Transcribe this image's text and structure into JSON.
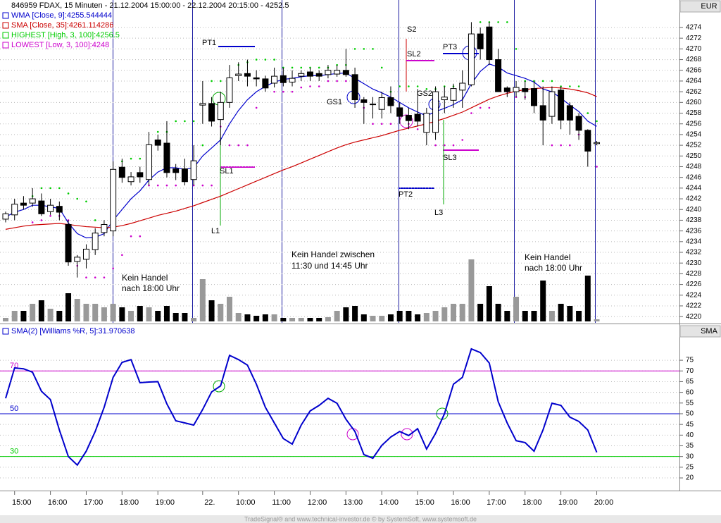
{
  "chart_data": [
    {
      "type": "candlestick",
      "title": "846959  FDAX, 15 Minuten - 21.12.2004 15:00:00 - 22.12.2004 20:15:00 - 4252.5",
      "axis_label": "EUR",
      "categories": [
        null,
        "15:00",
        null,
        null,
        null,
        "16:00",
        null,
        null,
        null,
        "17:00",
        null,
        null,
        null,
        "18:00",
        null,
        null,
        null,
        "19:00",
        null,
        null,
        null,
        null,
        "22.",
        null,
        null,
        null,
        "10:00",
        null,
        null,
        null,
        "11:00",
        null,
        null,
        null,
        "12:00",
        null,
        null,
        null,
        "13:00",
        null,
        null,
        null,
        "14:00",
        null,
        null,
        null,
        "15:00",
        null,
        null,
        null,
        "16:00",
        null,
        null,
        null,
        "17:00",
        null,
        null,
        null,
        "18:00",
        null,
        null,
        null,
        "19:00",
        null,
        null,
        null,
        "20:00"
      ],
      "open": [
        4238.2,
        4239,
        4241.2,
        4241.2,
        4241.6,
        4239.6,
        4240.6,
        4237.2,
        4230.3,
        4230.7,
        4232.5,
        4235.7,
        4236,
        4247.9,
        4245.2,
        4246.9,
        4245.6,
        4253,
        4252.4,
        4247.6,
        4247.6,
        4245.6,
        4259.5,
        4259.8,
        4256.8,
        4260,
        4265,
        4265.4,
        4264.6,
        4264.4,
        4263.6,
        4265,
        4263.8,
        4264.9,
        4265.7,
        4265.4,
        4265.2,
        4265.3,
        4266,
        4265.2,
        4260.5,
        4259.6,
        4258.7,
        4260.9,
        4259,
        4257.6,
        4257.8,
        4254.4,
        4254.4,
        4260.5,
        4260.4,
        4262.3,
        4263.3,
        4272.8,
        4274.1,
        4268,
        4262.7,
        4262,
        4262.6,
        4262.6,
        4259.4,
        4257.4,
        4262.3,
        4259.4,
        4257.4,
        4254.8,
        4252.3
      ],
      "high": [
        4239.6,
        4242,
        4242.5,
        4244,
        4243,
        4242,
        4241.5,
        4238,
        4231.5,
        4233.5,
        4236.5,
        4238,
        4249,
        4249.5,
        4247,
        4248,
        4254.5,
        4254,
        4256.5,
        4248.5,
        4249.5,
        4252,
        4264,
        4261,
        4262,
        4267,
        4267.5,
        4268,
        4266,
        4265,
        4266.5,
        4266.5,
        4266,
        4266,
        4266.5,
        4266,
        4267,
        4267,
        4270,
        4266.5,
        4261,
        4261,
        4262,
        4263,
        4260,
        4259,
        4262.5,
        4259,
        4263,
        4263,
        4263.5,
        4266,
        4275,
        4274,
        4275,
        4270,
        4263,
        4264,
        4264,
        4264,
        4263,
        4263,
        4263,
        4260,
        4258,
        4255,
        4252.8
      ],
      "low": [
        4237.6,
        4238,
        4240,
        4240.5,
        4238.8,
        4239,
        4238,
        4229.5,
        4227.3,
        4229,
        4231.5,
        4235,
        4235,
        4245,
        4244.5,
        4245,
        4244.5,
        4251,
        4246,
        4245.5,
        4244.5,
        4244.5,
        4256,
        4255.5,
        4252,
        4259,
        4264,
        4263,
        4263,
        4262,
        4262.8,
        4263,
        4263,
        4264,
        4264,
        4264,
        4264.5,
        4264.8,
        4264.8,
        4259,
        4256,
        4257,
        4257,
        4258,
        4256,
        4255,
        4255.5,
        4252,
        4253,
        4258,
        4259,
        4259,
        4263,
        4268,
        4267,
        4262,
        4261,
        4261,
        4260.5,
        4258,
        4252,
        4256,
        4255,
        4254,
        4253,
        4248,
        4252
      ],
      "close": [
        4239.2,
        4241,
        4240.8,
        4242,
        4239.2,
        4240.8,
        4239.5,
        4230.2,
        4231.1,
        4232.6,
        4235.6,
        4237.2,
        4247.5,
        4246,
        4246.1,
        4246.1,
        4252.1,
        4252,
        4246.9,
        4246.9,
        4245.2,
        4249.1,
        4259.8,
        4256.5,
        4260,
        4264.6,
        4265.3,
        4264.9,
        4264.4,
        4262.7,
        4264.9,
        4263.7,
        4264.5,
        4265.4,
        4264.9,
        4264.9,
        4266,
        4266,
        4265.2,
        4260.5,
        4260,
        4259.7,
        4260.9,
        4259.4,
        4257.4,
        4256.6,
        4256.5,
        4258,
        4262,
        4261,
        4262.6,
        4263.6,
        4272.8,
        4270,
        4268,
        4262,
        4262,
        4262.8,
        4262,
        4259.4,
        4256.7,
        4262,
        4256.7,
        4256.7,
        4254.8,
        4250.9,
        4252.5
      ],
      "up_color": "#ffffff",
      "down_color": "#000000",
      "volume": [
        5,
        15,
        15,
        25,
        30,
        18,
        15,
        40,
        32,
        25,
        25,
        20,
        25,
        20,
        15,
        22,
        20,
        15,
        22,
        12,
        12,
        5,
        60,
        30,
        25,
        35,
        12,
        10,
        8,
        10,
        10,
        5,
        5,
        5,
        5,
        5,
        6,
        15,
        20,
        22,
        10,
        8,
        8,
        10,
        15,
        15,
        10,
        12,
        15,
        20,
        25,
        25,
        88,
        25,
        50,
        25,
        15,
        35,
        15,
        15,
        58,
        15,
        25,
        22,
        15,
        65,
        3
      ],
      "volume_lim": [
        0,
        100
      ],
      "volume_up_color": "#999999",
      "volume_down_color": "#000000",
      "series": [
        {
          "name": "WMA [Close, 9]:4255.544444",
          "color": "#0000cc",
          "style": "line",
          "values": [
            4238.6,
            4239.5,
            4240,
            4240.8,
            4240.8,
            4240.5,
            4240.2,
            4237.5,
            4235.5,
            4234.7,
            4234.8,
            4235.5,
            4238,
            4240,
            4242,
            4243.5,
            4245.5,
            4247,
            4247.8,
            4247.8,
            4247.5,
            4247.8,
            4250,
            4251.5,
            4253,
            4256,
            4258.5,
            4260.5,
            4262,
            4263,
            4263.8,
            4264.3,
            4264.5,
            4264.8,
            4265,
            4265,
            4265.2,
            4265.4,
            4265.5,
            4264.5,
            4263.5,
            4262.5,
            4261.8,
            4261,
            4260,
            4259,
            4258.2,
            4257.5,
            4258.3,
            4258.9,
            4259.6,
            4260.5,
            4263.5,
            4265.8,
            4267.2,
            4266.6,
            4265.5,
            4265,
            4264.5,
            4263.8,
            4262.5,
            4262,
            4260.8,
            4259.5,
            4258.3,
            4256.5,
            4255.54
          ]
        },
        {
          "name": "SMA [Close, 35]:4261.114286",
          "color": "#cc0000",
          "style": "line",
          "values": [
            4236.3,
            4236.6,
            4236.9,
            4237.1,
            4237.2,
            4237.3,
            4237.4,
            4237.2,
            4237,
            4236.8,
            4236.7,
            4236.6,
            4236.7,
            4237,
            4237.4,
            4237.9,
            4238.4,
            4238.9,
            4239.3,
            4239.7,
            4240.2,
            4240.7,
            4241.3,
            4241.9,
            4242.5,
            4243.2,
            4243.9,
            4244.6,
            4245.3,
            4246,
            4246.7,
            4247.4,
            4248,
            4248.7,
            4249.4,
            4250.1,
            4250.8,
            4251.5,
            4252.1,
            4252.6,
            4253,
            4253.4,
            4253.8,
            4254.3,
            4254.8,
            4255.2,
            4255.6,
            4256,
            4256.5,
            4257,
            4257.6,
            4258.2,
            4259,
            4259.8,
            4260.6,
            4261.2,
            4261.7,
            4262.1,
            4262.4,
            4262.6,
            4262.7,
            4262.8,
            4262.7,
            4262.5,
            4262.2,
            4261.8,
            4261.11
          ]
        },
        {
          "name": "HIGHEST [High, 3, 100]:4256.5",
          "color": "#00cc00",
          "style": "dots",
          "values": [
            null,
            null,
            null,
            4242.5,
            4244,
            4244,
            4244,
            4243,
            4242,
            4241.5,
            4238,
            4236.5,
            4238,
            4249,
            4249.5,
            4249.5,
            4249.5,
            4254.5,
            4254.5,
            4256.5,
            4256.5,
            4256.5,
            4252,
            4264,
            4264,
            4264,
            4267,
            4267.5,
            4268,
            4268,
            4268,
            4266.5,
            4266.5,
            4266.5,
            4266.5,
            4266.5,
            4266.5,
            4267,
            4267,
            4270,
            4270,
            4270,
            4266.5,
            4262,
            4263,
            4263,
            4263,
            4262.5,
            4262.5,
            4263,
            4263,
            4263.5,
            4266,
            4275,
            4275,
            4275,
            4275,
            4270,
            4264,
            4264,
            4264,
            4264,
            4263,
            4263,
            4263,
            4258,
            4256.5
          ]
        },
        {
          "name": "LOWEST [Low, 3, 100]:4248",
          "color": "#cc00cc",
          "style": "dots",
          "values": [
            null,
            null,
            null,
            4237.6,
            4238,
            4238.8,
            4238.8,
            4238,
            4229.5,
            4227.3,
            4227.3,
            4227.3,
            4229,
            4231.5,
            4235,
            4235,
            4244.5,
            4244.5,
            4244.5,
            4244.5,
            4245.5,
            4244.5,
            4244.5,
            4244.5,
            4255.5,
            4252,
            4252,
            4252,
            4259,
            4263,
            4262,
            4262,
            4262,
            4262.8,
            4263,
            4263,
            4264,
            4264,
            4264,
            4264.5,
            4259,
            4256,
            4256,
            4256,
            4257,
            4256,
            4255,
            4255,
            4252,
            4252,
            4252,
            4253,
            4258,
            4259,
            4259,
            4263,
            4262,
            4261,
            4261,
            4260.5,
            4258,
            4252,
            4252,
            4252,
            4254,
            4253,
            4248
          ]
        }
      ],
      "ylim": [
        4219.1,
        4276.5
      ],
      "yticks": [
        4220,
        4222,
        4224,
        4226,
        4228,
        4230,
        4232,
        4234,
        4236,
        4238,
        4240,
        4242,
        4244,
        4246,
        4248,
        4250,
        4252,
        4254,
        4256,
        4258,
        4260,
        4262,
        4264,
        4266,
        4268,
        4270,
        4272,
        4274
      ],
      "grid": true,
      "annotations": [
        "PT1",
        "SL1",
        "L1",
        "GS1",
        "S2",
        "SL2",
        "PT2",
        "PT3",
        "GS2",
        "SL3",
        "L3",
        "Kein Handel",
        "nach 18:00 Uhr",
        "Kein Handel zwischen",
        "11:30 und 14:45 Uhr",
        "Kein Handel",
        "nach 18:00 Uhr"
      ]
    },
    {
      "type": "line",
      "axis_label": "SMA",
      "series": [
        {
          "name": "SMA(2) [Williams %R, 5]:31.970638",
          "color": "#0000cc",
          "values": [
            57.2,
            71.4,
            71,
            69.4,
            60.5,
            56.6,
            42.4,
            30,
            26,
            32.5,
            41.7,
            53,
            67,
            74,
            75.3,
            64.5,
            64.8,
            65,
            54.6,
            46.7,
            45.7,
            44.7,
            52,
            60.2,
            63,
            77.3,
            75.3,
            72.7,
            63.8,
            53,
            45.7,
            38.4,
            35.8,
            44.7,
            51.3,
            53.9,
            57.2,
            54.9,
            47.4,
            41.7,
            30.9,
            29.2,
            35.2,
            39.1,
            41.7,
            39.8,
            43,
            33.5,
            40.8,
            50,
            63.8,
            67,
            80.3,
            78.6,
            73.7,
            55.6,
            45.7,
            37.4,
            36.5,
            32.5,
            42.4,
            54.9,
            53.9,
            48.4,
            46.4,
            42.4,
            31.97
          ]
        }
      ],
      "levels": [
        {
          "value": 70,
          "color": "#cc00cc"
        },
        {
          "value": 50,
          "color": "#0000cc"
        },
        {
          "value": 30,
          "color": "#00cc00"
        }
      ],
      "ylim": [
        15.4,
        85.9
      ],
      "yticks": [
        20,
        25,
        30,
        35,
        40,
        45,
        50,
        55,
        60,
        65,
        70,
        75
      ],
      "grid": true
    }
  ],
  "footer": "TradeSignal® and www.technical-investor.de © by SystemSoft, www.systemsoft.de"
}
